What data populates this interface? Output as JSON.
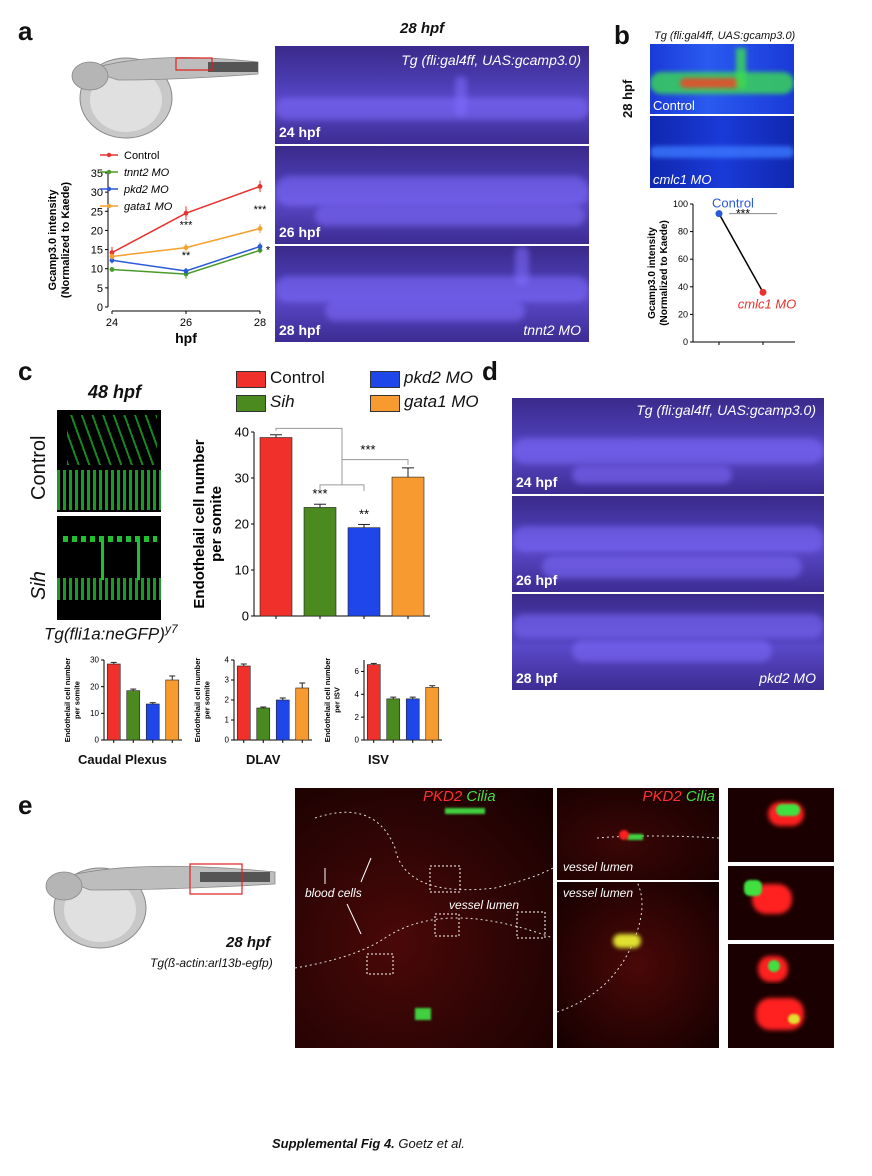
{
  "panels": {
    "a": "a",
    "b": "b",
    "c": "c",
    "d": "d",
    "e": "e"
  },
  "a": {
    "header": "28 hpf",
    "transgene": "Tg (fli:gal4ff, UAS:gcamp3.0)",
    "frames": [
      "24 hpf",
      "26 hpf",
      "28 hpf"
    ],
    "frame_corner": "tnnt2 MO"
  },
  "b": {
    "transgene": "Tg (fli:gal4ff, UAS:gcamp3.0)",
    "side_label": "28 hpf",
    "img1": "Control",
    "img2": "cmlc1 MO"
  },
  "c": {
    "header": "48 hpf",
    "row1": "Control",
    "row2": "Sih",
    "transgene": "Tg(fli1a:neGFP)",
    "transgene_sup": "y7",
    "small_labels": [
      "Caudal Plexus",
      "DLAV",
      "ISV"
    ]
  },
  "d": {
    "transgene": "Tg (fli:gal4ff, UAS:gcamp3.0)",
    "frames": [
      "24 hpf",
      "26 hpf",
      "28 hpf"
    ],
    "frame_corner": "pkd2 MO"
  },
  "e": {
    "stage": "28 hpf",
    "transgene": "Tg(ß-actin:arl13b-egfp)",
    "pkd2": "PKD2",
    "cilia": "Cilia",
    "blood_cells": "blood cells",
    "vessel_lumen": "vessel lumen"
  },
  "footer": {
    "bold": "Supplemental Fig 4.",
    "rest": "Goetz et al."
  },
  "chart_data": [
    {
      "id": "a-line",
      "type": "line",
      "xlabel": "hpf",
      "ylabel": "Gcamp3.0 intensity (Normalized to Kaede)",
      "x": [
        24,
        26,
        28
      ],
      "ylim": [
        0,
        35
      ],
      "yticks": [
        0,
        5,
        10,
        15,
        20,
        25,
        30,
        35
      ],
      "series": [
        {
          "name": "Control",
          "color": "#e8322d",
          "values": [
            14.2,
            24.5,
            31.5
          ],
          "err": [
            1.5,
            1.8,
            1.5
          ]
        },
        {
          "name": "tnnt2 MO",
          "color": "#4a9a2a",
          "values": [
            9.8,
            8.6,
            14.8
          ],
          "err": [
            0.6,
            1.2,
            0.8
          ]
        },
        {
          "name": "pkd2 MO",
          "color": "#2a5ad8",
          "values": [
            12.2,
            9.4,
            15.8
          ],
          "err": [
            0.8,
            0.8,
            1.0
          ]
        },
        {
          "name": "gata1 MO",
          "color": "#f5a030",
          "values": [
            13.2,
            15.5,
            20.5
          ],
          "err": [
            0.8,
            1.0,
            1.2
          ]
        }
      ],
      "annotations": [
        "***",
        "**",
        "***",
        "*"
      ]
    },
    {
      "id": "b-dot",
      "type": "line",
      "ylabel": "Gcamp3.0 intensity (Normalized to Kaede)",
      "ylim": [
        0,
        100
      ],
      "yticks": [
        0,
        20,
        40,
        60,
        80,
        100
      ],
      "categories": [
        "Control",
        "cmlc1 MO"
      ],
      "values": [
        93,
        36
      ],
      "colors": [
        "#2a5ad8",
        "#e8322d"
      ],
      "annotation": "***"
    },
    {
      "id": "c-main",
      "type": "bar",
      "ylabel": "Endothelail cell number per somite",
      "ylim": [
        0,
        40
      ],
      "yticks": [
        0,
        10,
        20,
        30,
        40
      ],
      "categories": [
        "Control",
        "Sih",
        "pkd2 MO",
        "gata1 MO"
      ],
      "values": [
        38.8,
        23.6,
        19.2,
        30.2
      ],
      "err": [
        0.6,
        0.7,
        0.7,
        2.0
      ],
      "colors": [
        "#f0302a",
        "#4a8a1e",
        "#1e46e8",
        "#f79a30"
      ],
      "annotations": [
        "***",
        "**",
        "***"
      ]
    },
    {
      "id": "c-caudal",
      "type": "bar",
      "xlabel": "Caudal Plexus",
      "ylabel": "Endothelail cell number per somite",
      "ylim": [
        0,
        30
      ],
      "yticks": [
        0,
        10,
        20,
        30
      ],
      "categories": [
        "Control",
        "Sih",
        "pkd2 MO",
        "gata1 MO"
      ],
      "values": [
        28.5,
        18.5,
        13.5,
        22.5
      ],
      "err": [
        0.6,
        0.6,
        0.5,
        1.5
      ],
      "colors": [
        "#f0302a",
        "#4a8a1e",
        "#1e46e8",
        "#f79a30"
      ]
    },
    {
      "id": "c-dlav",
      "type": "bar",
      "xlabel": "DLAV",
      "ylabel": "Endothelail cell number per somite",
      "ylim": [
        0,
        4
      ],
      "yticks": [
        0,
        1,
        2,
        3,
        4
      ],
      "categories": [
        "Control",
        "Sih",
        "pkd2 MO",
        "gata1 MO"
      ],
      "values": [
        3.7,
        1.6,
        2.0,
        2.6
      ],
      "err": [
        0.1,
        0.05,
        0.1,
        0.25
      ],
      "colors": [
        "#f0302a",
        "#4a8a1e",
        "#1e46e8",
        "#f79a30"
      ]
    },
    {
      "id": "c-isv",
      "type": "bar",
      "xlabel": "ISV",
      "ylabel": "Endothelail cell number per ISV",
      "ylim": [
        0,
        7
      ],
      "yticks": [
        0,
        2,
        4,
        6
      ],
      "categories": [
        "Control",
        "Sih",
        "pkd2 MO",
        "gata1 MO"
      ],
      "values": [
        6.6,
        3.6,
        3.6,
        4.6
      ],
      "err": [
        0.1,
        0.15,
        0.15,
        0.15
      ],
      "colors": [
        "#f0302a",
        "#4a8a1e",
        "#1e46e8",
        "#f79a30"
      ]
    }
  ]
}
